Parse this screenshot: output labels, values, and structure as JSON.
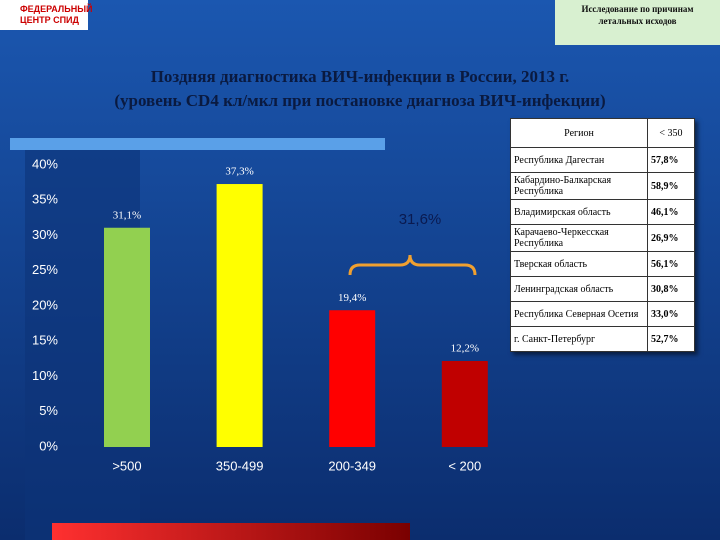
{
  "logo": [
    "ФЕДЕРАЛЬНЫЙ",
    "ЦЕНТР СПИД"
  ],
  "note": "Исследование по причинам летальных исходов",
  "chart_data": {
    "type": "bar",
    "title": "Поздняя диагностика ВИЧ-инфекции в России, 2013 г.",
    "subtitle": "(уровень CD4 кл/мкл при постановке диагноза ВИЧ-инфекции)",
    "categories": [
      ">500",
      "350-499",
      "200-349",
      "< 200"
    ],
    "values": [
      31.1,
      37.3,
      19.4,
      12.2
    ],
    "value_labels": [
      "31,1%",
      "37,3%",
      "19,4%",
      "12,2%"
    ],
    "colors": [
      "#92d050",
      "#ffff00",
      "#ff0000",
      "#c00000"
    ],
    "ylim": [
      0,
      40
    ],
    "yticks": [
      {
        "value": 0,
        "label": "0%"
      },
      {
        "value": 5,
        "label": "5%"
      },
      {
        "value": 10,
        "label": "10%"
      },
      {
        "value": 15,
        "label": "15%"
      },
      {
        "value": 20,
        "label": "20%"
      },
      {
        "value": 25,
        "label": "25%"
      },
      {
        "value": 30,
        "label": "30%"
      },
      {
        "value": 35,
        "label": "35%"
      },
      {
        "value": 40,
        "label": "40%"
      }
    ],
    "annotation": "31,6%"
  },
  "table": {
    "header": [
      "Регион",
      "< 350"
    ],
    "rows": [
      [
        "Республика Дагестан",
        "57,8%"
      ],
      [
        "Кабардино-Балкарская Республика",
        "58,9%"
      ],
      [
        "Владимирская область",
        "46,1%"
      ],
      [
        "Карачаево-Черкесская Республика",
        "26,9%"
      ],
      [
        "Тверская область",
        "56,1%"
      ],
      [
        "Ленинградская область",
        "30,8%"
      ],
      [
        "Республика Северная Осетия",
        "33,0%"
      ],
      [
        "г. Санкт-Петербург",
        "52,7%"
      ]
    ]
  }
}
